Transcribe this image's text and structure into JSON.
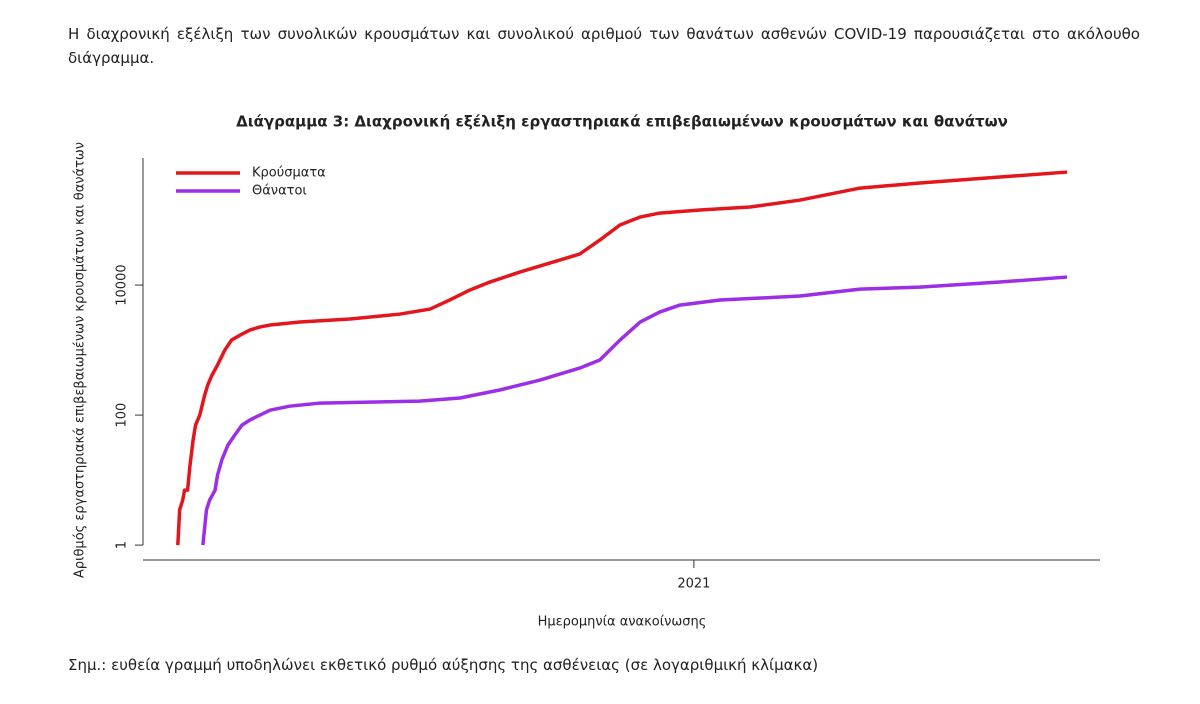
{
  "header": {
    "text": "Η διαχρονική εξέλιξη των συνολικών κρουσμάτων και συνολικού αριθμού των θανάτων ασθενών COVID-19 παρουσιάζεται στο ακόλουθο διάγραμμα."
  },
  "chart_data": {
    "type": "line",
    "title": "Διάγραμμα 3: Διαχρονική εξέλιξη εργαστηριακά επιβεβαιωμένων κρουσμάτων και θανάτων",
    "xlabel": "Ημερομηνία ανακοίνωσης",
    "ylabel": "Αριθμός εργαστηριακά επιβεβαιωμένων κρουσμάτων και θανάτων",
    "xlim": [
      2020.098,
      2021.665
    ],
    "xticks": [
      2021
    ],
    "ylim": [
      0.59,
      900000
    ],
    "yticks": [
      1,
      100,
      10000
    ],
    "log_y": true,
    "grid": false,
    "legend": "top-left",
    "series": [
      {
        "name": "Κρούσματα",
        "color": "#e3161e",
        "x": [
          2020.155,
          2020.158,
          2020.163,
          2020.166,
          2020.171,
          2020.175,
          2020.18,
          2020.184,
          2020.191,
          2020.199,
          2020.204,
          2020.211,
          2020.22,
          2020.232,
          2020.243,
          2020.257,
          2020.273,
          2020.289,
          2020.306,
          2020.355,
          2020.437,
          2020.519,
          2020.568,
          2020.6,
          2020.633,
          2020.666,
          2020.715,
          2020.764,
          2020.813,
          2020.846,
          2020.879,
          2020.912,
          2020.944,
          2021.01,
          2021.092,
          2021.174,
          2021.272,
          2021.37,
          2021.501,
          2021.611
        ],
        "values": [
          1,
          3.5,
          4.9,
          7,
          7,
          17,
          41,
          70,
          100,
          203,
          290,
          412,
          588,
          1000,
          1425,
          1700,
          2030,
          2260,
          2425,
          2700,
          3000,
          3580,
          4275,
          5880,
          8370,
          11120,
          15850,
          21800,
          30000,
          49200,
          83800,
          111200,
          128000,
          142500,
          158500,
          203000,
          310000,
          371000,
          459000,
          547000
        ]
      },
      {
        "name": "Θάνατοι",
        "color": "#9b2ee6",
        "x": [
          2020.196,
          2020.202,
          2020.207,
          2020.216,
          2020.22,
          2020.227,
          2020.237,
          2020.248,
          2020.26,
          2020.273,
          2020.306,
          2020.338,
          2020.388,
          2020.469,
          2020.551,
          2020.617,
          2020.682,
          2020.748,
          2020.813,
          2020.846,
          2020.879,
          2020.912,
          2020.944,
          2020.977,
          2021.043,
          2021.174,
          2021.272,
          2021.37,
          2021.501,
          2021.611
        ],
        "values": [
          1,
          3.5,
          4.9,
          7,
          11.9,
          20.3,
          34.5,
          49,
          70,
          84,
          119,
          137,
          153,
          158,
          164,
          183,
          243,
          345,
          528,
          702,
          1425,
          2700,
          3840,
          4920,
          5880,
          6780,
          8670,
          9310,
          11120,
          13270
        ]
      }
    ]
  },
  "note": "Σημ.: ευθεία γραμμή υποδηλώνει εκθετικό ρυθμό αύξησης της ασθένειας (σε λογαριθμική κλίμακα)"
}
